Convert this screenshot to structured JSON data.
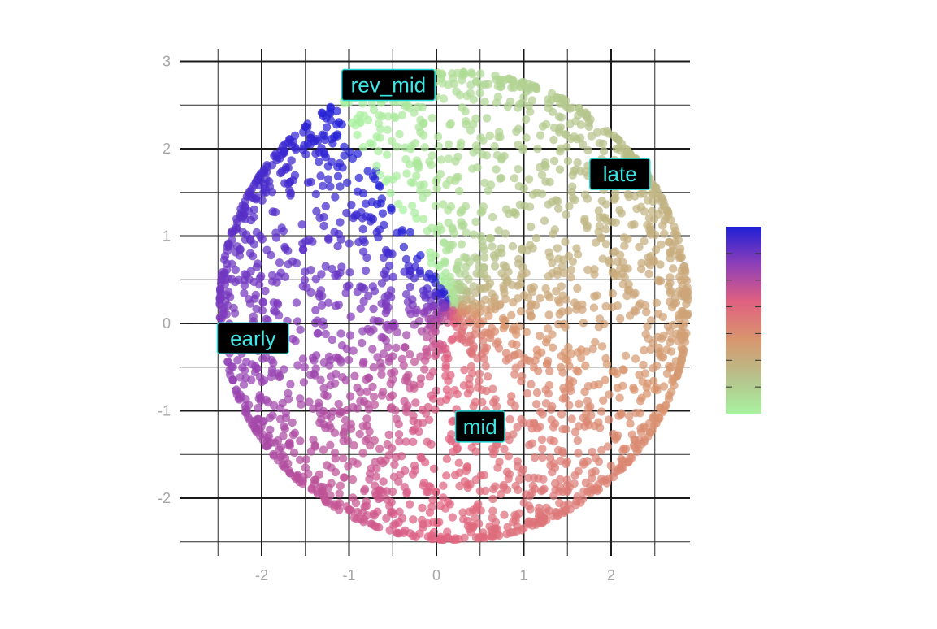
{
  "colors": {
    "gradient": [
      "#1f1fd6",
      "#8e3fb8",
      "#e06080",
      "#d9956e",
      "#b7c08a",
      "#a8f2a0"
    ],
    "annotation_text": "#3ee6e6",
    "annotation_border": "#22d3d3",
    "annotation_fill": "#000000",
    "tick_label": "#a6a6a6"
  },
  "chart_data": {
    "type": "scatter",
    "title": "",
    "xlabel": "",
    "ylabel": "",
    "xlim": [
      -2.9,
      2.9
    ],
    "ylim": [
      -2.6,
      3.1
    ],
    "x_ticks": [
      -2,
      -1,
      0,
      1,
      2
    ],
    "y_ticks": [
      -2,
      -1,
      0,
      1,
      2,
      3
    ],
    "x_tick_labels": [
      "-2",
      "-1",
      "0",
      "1",
      "2"
    ],
    "y_tick_labels": [
      "-2",
      "-1",
      "0",
      "1",
      "2",
      "3"
    ],
    "grid": true,
    "reference_lines": {
      "x": 0,
      "y": 0,
      "style": "dashed"
    },
    "point_shape": "ring of points around center (0.2, 0.2), radius ~2.65, denser at the rim, colored by angle",
    "color_scale": "continuous gradient: blue (top-left) → purple (early) → pink (mid) → tan → light green (top)",
    "legend": {
      "type": "colorbar",
      "placement": "right",
      "labels": []
    },
    "annotations": [
      {
        "label": "early",
        "x": -2.1,
        "y": -0.17
      },
      {
        "label": "mid",
        "x": 0.5,
        "y": -1.18
      },
      {
        "label": "late",
        "x": 2.1,
        "y": 1.71
      },
      {
        "label": "rev_mid",
        "x": -0.55,
        "y": 2.73
      }
    ]
  }
}
